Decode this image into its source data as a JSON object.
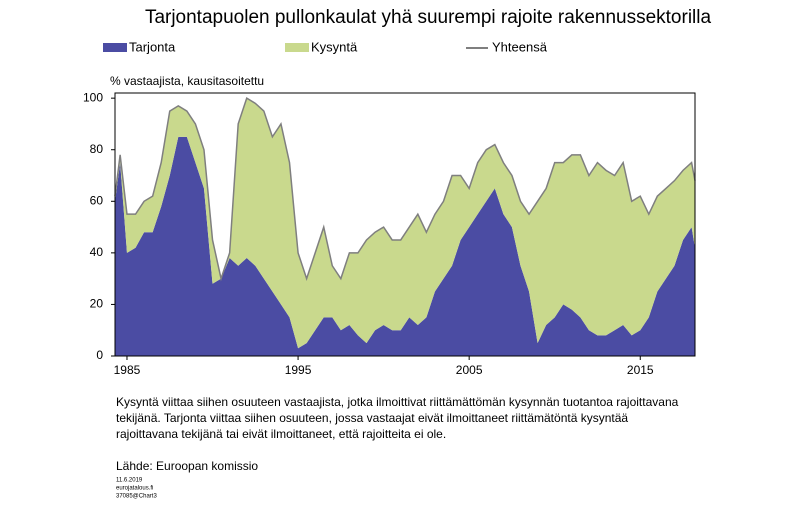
{
  "chart_data": {
    "type": "stacked-area",
    "title": "Tarjontapuolen pullonkaulat yhä suurempi rajoite rakennussektorilla",
    "y_label": "% vastaajista, kausitasoitettu",
    "x": [
      1984.3,
      1984.6,
      1985,
      1985.5,
      1986,
      1986.5,
      1987,
      1987.5,
      1988,
      1988.5,
      1989,
      1989.5,
      1990,
      1990.5,
      1991,
      1991.5,
      1992,
      1992.5,
      1993,
      1993.5,
      1994,
      1994.5,
      1995,
      1995.5,
      1996,
      1996.5,
      1997,
      1997.5,
      1998,
      1998.5,
      1999,
      1999.5,
      2000,
      2000.5,
      2001,
      2001.5,
      2002,
      2002.5,
      2003,
      2003.5,
      2004,
      2004.5,
      2005,
      2005.5,
      2006,
      2006.5,
      2007,
      2007.5,
      2008,
      2008.5,
      2009,
      2009.5,
      2010,
      2010.5,
      2011,
      2011.5,
      2012,
      2012.5,
      2013,
      2013.5,
      2014,
      2014.5,
      2015,
      2015.5,
      2016,
      2016.5,
      2017,
      2017.5,
      2018,
      2018.2
    ],
    "series": [
      {
        "name": "Tarjonta",
        "color": "#4b4ca3",
        "stack": true,
        "values": [
          60,
          75,
          40,
          42,
          48,
          48,
          58,
          70,
          85,
          85,
          75,
          65,
          28,
          30,
          38,
          35,
          38,
          35,
          30,
          25,
          20,
          15,
          3,
          5,
          10,
          15,
          15,
          10,
          12,
          8,
          5,
          10,
          12,
          10,
          10,
          15,
          12,
          15,
          25,
          30,
          35,
          45,
          50,
          55,
          60,
          65,
          55,
          50,
          35,
          25,
          5,
          12,
          15,
          20,
          18,
          15,
          10,
          8,
          8,
          10,
          12,
          8,
          10,
          15,
          25,
          30,
          35,
          45,
          50,
          42
        ]
      },
      {
        "name": "Kysyntä",
        "color": "#c9d98d",
        "stack": true,
        "values": [
          2,
          3,
          15,
          13,
          12,
          14,
          17,
          25,
          12,
          10,
          15,
          15,
          17,
          0,
          2,
          55,
          62,
          63,
          65,
          60,
          70,
          60,
          37,
          25,
          30,
          35,
          20,
          20,
          28,
          32,
          40,
          38,
          38,
          35,
          35,
          35,
          43,
          33,
          30,
          30,
          35,
          25,
          15,
          20,
          20,
          17,
          20,
          20,
          25,
          30,
          55,
          53,
          60,
          55,
          60,
          63,
          60,
          67,
          64,
          60,
          63,
          52,
          52,
          40,
          37,
          35,
          33,
          27,
          25,
          26
        ]
      },
      {
        "name": "Yhteensä",
        "color": "#7f7f7f",
        "stack": false,
        "values": [
          62,
          78,
          55,
          55,
          60,
          62,
          75,
          95,
          97,
          95,
          90,
          80,
          45,
          30,
          40,
          90,
          100,
          98,
          95,
          85,
          90,
          75,
          40,
          30,
          40,
          50,
          35,
          30,
          40,
          40,
          45,
          48,
          50,
          45,
          45,
          50,
          55,
          48,
          55,
          60,
          70,
          70,
          65,
          75,
          80,
          82,
          75,
          70,
          60,
          55,
          60,
          65,
          75,
          75,
          78,
          78,
          70,
          75,
          72,
          70,
          75,
          60,
          62,
          55,
          62,
          65,
          68,
          72,
          75,
          68
        ]
      }
    ],
    "xlim": [
      1984.3,
      2018.2
    ],
    "xticks": [
      1985,
      1995,
      2005,
      2015
    ],
    "ylim": [
      0,
      102
    ],
    "yticks": [
      0,
      20,
      40,
      60,
      80,
      100
    ],
    "legend": "top",
    "note": [
      "Kysyntä viittaa siihen osuuteen vastaajista, jotka ilmoittivat riittämättömän kysynnän tuotantoa rajoittavana",
      "tekijänä. Tarjonta viittaa siihen osuuteen, jossa vastaajat eivät ilmoittaneet riittämätöntä kysyntää",
      "rajoittavana tekijänä tai eivät ilmoittaneet, että rajoitteita ei ole."
    ],
    "source": "Lähde: Euroopan komissio",
    "footer": [
      "11.6.2019",
      "eurojatalous.fi",
      "37085@Chart3"
    ]
  }
}
